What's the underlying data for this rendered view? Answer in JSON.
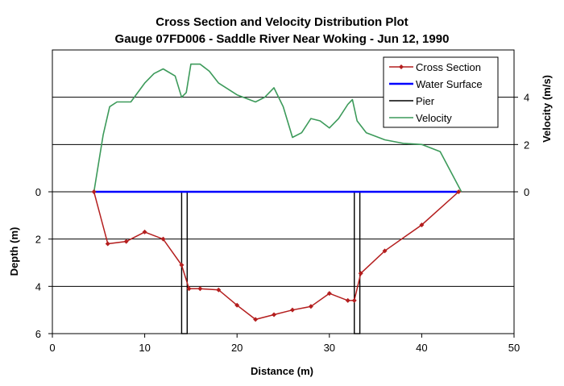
{
  "chart_data": {
    "type": "line",
    "title": "Cross Section and Velocity Distribution Plot",
    "subtitle": "Gauge 07FD006 - Saddle River Near Woking - Jun 12, 1990",
    "xlabel": "Distance (m)",
    "ylabel_left": "Depth (m)",
    "ylabel_right": "Velocity (m/s)",
    "xlim": [
      0,
      50
    ],
    "x_ticks": [
      "0",
      "10",
      "20",
      "30",
      "40",
      "50"
    ],
    "x_tick_values": [
      0,
      10,
      20,
      30,
      40,
      50
    ],
    "depth_ticks": [
      "0",
      "2",
      "4",
      "6"
    ],
    "depth_tick_values": [
      0,
      2,
      4,
      6
    ],
    "velocity_ticks": [
      "0",
      "2",
      "4"
    ],
    "velocity_tick_values": [
      0,
      2,
      4
    ],
    "depth_max": 6,
    "velocity_range": [
      0,
      6
    ],
    "gridlines_at_velocity": [
      2,
      4
    ],
    "gridlines_at_depth": [
      2,
      4
    ],
    "grid": true,
    "legend_position": "top-right",
    "colors": {
      "cross_section": "#b41e1e",
      "water_surface": "#0000ff",
      "pier": "#000000",
      "velocity": "#3c9a5a"
    },
    "series": [
      {
        "name": "Cross Section",
        "axis": "depth",
        "x": [
          4.5,
          6,
          8,
          10,
          12,
          14,
          14.8,
          16,
          18,
          20,
          22,
          24,
          26,
          28,
          30,
          32,
          32.7,
          33.4,
          36,
          40,
          44
        ],
        "y": [
          0,
          2.2,
          2.1,
          1.7,
          2.0,
          3.1,
          4.1,
          4.1,
          4.15,
          4.8,
          5.4,
          5.2,
          5.0,
          4.85,
          4.3,
          4.6,
          4.6,
          3.45,
          2.5,
          1.4,
          0
        ]
      },
      {
        "name": "Water Surface",
        "axis": "depth",
        "x": [
          4.5,
          44
        ],
        "y": [
          0,
          0
        ]
      },
      {
        "name": "Pier",
        "axis": "depth",
        "piers": [
          [
            14,
            14.6
          ],
          [
            32.7,
            33.3
          ]
        ]
      },
      {
        "name": "Velocity",
        "axis": "velocity",
        "x": [
          4.5,
          5.5,
          6.2,
          7,
          8.5,
          10,
          11,
          12,
          13.3,
          14,
          14.5,
          15,
          16,
          17,
          18,
          20,
          22,
          23,
          24,
          25,
          26,
          27,
          28,
          29,
          30,
          31,
          32,
          32.5,
          33,
          34,
          36,
          38,
          40,
          42,
          44.3
        ],
        "y": [
          0,
          2.4,
          3.6,
          3.8,
          3.8,
          4.6,
          5.0,
          5.2,
          4.9,
          4.0,
          4.2,
          5.4,
          5.4,
          5.1,
          4.6,
          4.1,
          3.8,
          4.0,
          4.4,
          3.6,
          2.3,
          2.5,
          3.1,
          3.0,
          2.7,
          3.1,
          3.7,
          3.9,
          3.0,
          2.5,
          2.2,
          2.05,
          2.0,
          1.7,
          0
        ]
      }
    ]
  }
}
